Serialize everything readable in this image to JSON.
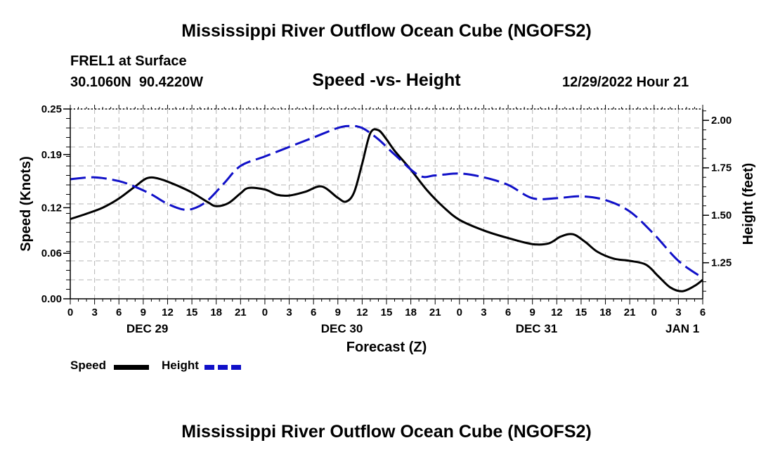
{
  "page": {
    "title_top": "Mississippi River Outflow Ocean Cube (NGOFS2)",
    "title_bottom": "Mississippi River Outflow Ocean Cube (NGOFS2)",
    "station": "FREL1 at Surface",
    "coords": "30.1060N  90.4220W",
    "datetime": "12/29/2022 Hour 21"
  },
  "colors": {
    "speed": "#000000",
    "height": "#1010c8",
    "grid": "#b4b4b4"
  },
  "chart_data": {
    "type": "line",
    "title": "Speed -vs- Height",
    "xlabel": "Forecast (Z)",
    "ylabel": "Speed (Knots)",
    "y2label": "Height (feet)",
    "x_unit": "hours since DEC 29 00Z",
    "xlim": [
      0,
      78
    ],
    "ylim": [
      0,
      0.25
    ],
    "y2lim": [
      1.06,
      2.06
    ],
    "x_ticks": [
      0,
      3,
      6,
      9,
      12,
      15,
      18,
      21,
      24,
      27,
      30,
      33,
      36,
      39,
      42,
      45,
      48,
      51,
      54,
      57,
      60,
      63,
      66,
      69,
      72,
      75,
      78
    ],
    "x_tick_labels": [
      "0",
      "3",
      "6",
      "9",
      "12",
      "15",
      "18",
      "21",
      "0",
      "3",
      "6",
      "9",
      "12",
      "15",
      "18",
      "21",
      "0",
      "3",
      "6",
      "9",
      "12",
      "15",
      "18",
      "21",
      "0",
      "3",
      "6"
    ],
    "date_labels": [
      {
        "x": 9.5,
        "label": "DEC 29"
      },
      {
        "x": 33.5,
        "label": "DEC 30"
      },
      {
        "x": 57.5,
        "label": "DEC 31"
      },
      {
        "x": 75.5,
        "label": "JAN 1"
      }
    ],
    "y_ticks": [
      0.0,
      0.06,
      0.12,
      0.19,
      0.25
    ],
    "y_tick_labels": [
      "0.00",
      "0.06",
      "0.12",
      "0.19",
      "0.25"
    ],
    "y2_ticks": [
      1.25,
      1.5,
      1.75,
      2.0
    ],
    "y2_tick_labels": [
      "1.25",
      "1.50",
      "1.75",
      "2.00"
    ],
    "grid": true,
    "legend": {
      "position": "bottom-left",
      "speed_label": "Speed",
      "height_label": "Height"
    },
    "series": [
      {
        "name": "Speed",
        "axis": "left",
        "style": "solid",
        "x": [
          0,
          2,
          4,
          6,
          8,
          9.5,
          11,
          13,
          15,
          17,
          18,
          19.5,
          21,
          22,
          24,
          25.5,
          27,
          29,
          31,
          33,
          34,
          35,
          36,
          37,
          38,
          39,
          40,
          42,
          44,
          46,
          48,
          51,
          54,
          57,
          59,
          60.5,
          62,
          63.5,
          65,
          67,
          69,
          71,
          72.5,
          74,
          75.5,
          77,
          78
        ],
        "values": [
          0.105,
          0.112,
          0.12,
          0.132,
          0.148,
          0.159,
          0.158,
          0.15,
          0.14,
          0.127,
          0.122,
          0.126,
          0.139,
          0.146,
          0.144,
          0.137,
          0.136,
          0.141,
          0.148,
          0.133,
          0.128,
          0.14,
          0.178,
          0.218,
          0.222,
          0.21,
          0.195,
          0.17,
          0.143,
          0.121,
          0.104,
          0.09,
          0.08,
          0.072,
          0.073,
          0.082,
          0.085,
          0.075,
          0.062,
          0.053,
          0.05,
          0.045,
          0.03,
          0.015,
          0.01,
          0.017,
          0.025
        ]
      },
      {
        "name": "Height",
        "axis": "right",
        "style": "dashed",
        "x": [
          0,
          3,
          6,
          8,
          10,
          12,
          14,
          15.5,
          17,
          19,
          21,
          24,
          27,
          30,
          33,
          34.5,
          36,
          38,
          40,
          43,
          45,
          48,
          51,
          54,
          57,
          60,
          63,
          66,
          69,
          72,
          75,
          78
        ],
        "values": [
          1.69,
          1.7,
          1.68,
          1.65,
          1.61,
          1.56,
          1.53,
          1.54,
          1.58,
          1.67,
          1.76,
          1.81,
          1.86,
          1.91,
          1.96,
          1.97,
          1.96,
          1.9,
          1.82,
          1.71,
          1.71,
          1.72,
          1.7,
          1.66,
          1.59,
          1.59,
          1.6,
          1.58,
          1.52,
          1.4,
          1.26,
          1.17
        ]
      }
    ]
  }
}
